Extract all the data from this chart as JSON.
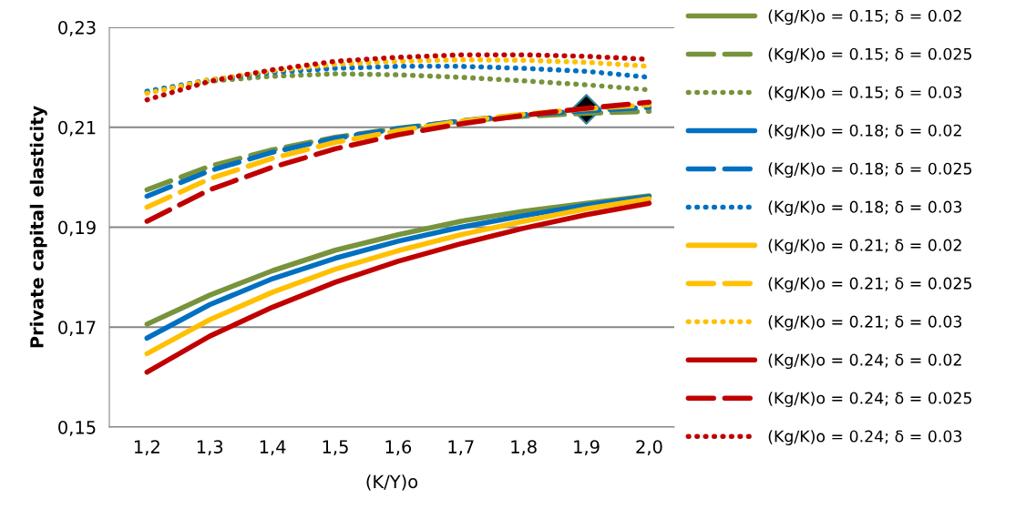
{
  "chart_data": {
    "type": "line",
    "xlabel": "(K/Y)o",
    "ylabel": "Private capital elasticity",
    "categories": [
      "1,2",
      "1,3",
      "1,4",
      "1,5",
      "1,6",
      "1,7",
      "1,8",
      "1,9",
      "2,0"
    ],
    "ylim": [
      0.15,
      0.23
    ],
    "yticks": [
      {
        "value": 0.15,
        "label": "0,15"
      },
      {
        "value": 0.17,
        "label": "0,17"
      },
      {
        "value": 0.19,
        "label": "0,19"
      },
      {
        "value": 0.21,
        "label": "0,21"
      },
      {
        "value": 0.23,
        "label": "0,23"
      }
    ],
    "grid": "y",
    "legend": "right",
    "marker": "none",
    "series": [
      {
        "name": "(Kg/K)o = 0.15; δ = 0.02",
        "color": "#77933c",
        "line_style": "solid",
        "values": [
          0.1706,
          0.1764,
          0.1813,
          0.1854,
          0.1885,
          0.1912,
          0.1932,
          0.1948,
          0.1963
        ]
      },
      {
        "name": "(Kg/K)o = 0.15; δ = 0.025",
        "color": "#77933c",
        "line_style": "dashed",
        "values": [
          0.1975,
          0.2022,
          0.2055,
          0.208,
          0.2098,
          0.2112,
          0.2122,
          0.2128,
          0.2132
        ]
      },
      {
        "name": "(Kg/K)o = 0.15; δ = 0.03",
        "color": "#77933c",
        "line_style": "dotted",
        "values": [
          0.217,
          0.2192,
          0.2202,
          0.2207,
          0.2205,
          0.22,
          0.2193,
          0.2185,
          0.2175
        ]
      },
      {
        "name": "(Kg/K)o = 0.18; δ = 0.02",
        "color": "#0070c0",
        "line_style": "solid",
        "values": [
          0.1678,
          0.1745,
          0.1797,
          0.1838,
          0.1872,
          0.19,
          0.1923,
          0.1944,
          0.1961
        ]
      },
      {
        "name": "(Kg/K)o = 0.18; δ = 0.025",
        "color": "#0070c0",
        "line_style": "dashed",
        "values": [
          0.1962,
          0.2013,
          0.205,
          0.2078,
          0.2097,
          0.2113,
          0.2125,
          0.2133,
          0.214
        ]
      },
      {
        "name": "(Kg/K)o = 0.18; δ = 0.03",
        "color": "#0070c0",
        "line_style": "dotted",
        "values": [
          0.2172,
          0.2195,
          0.221,
          0.2218,
          0.2222,
          0.2222,
          0.2218,
          0.2212,
          0.22
        ]
      },
      {
        "name": "(Kg/K)o = 0.21; δ = 0.02",
        "color": "#ffc000",
        "line_style": "solid",
        "values": [
          0.1647,
          0.1715,
          0.177,
          0.1816,
          0.1853,
          0.1885,
          0.1912,
          0.1937,
          0.1957
        ]
      },
      {
        "name": "(Kg/K)o = 0.21; δ = 0.025",
        "color": "#ffc000",
        "line_style": "dashed",
        "values": [
          0.194,
          0.1997,
          0.2038,
          0.207,
          0.2093,
          0.2112,
          0.2126,
          0.2137,
          0.2145
        ]
      },
      {
        "name": "(Kg/K)o = 0.21; δ = 0.03",
        "color": "#ffc000",
        "line_style": "dotted",
        "values": [
          0.2168,
          0.2195,
          0.2213,
          0.2226,
          0.2232,
          0.2235,
          0.2234,
          0.223,
          0.2222
        ]
      },
      {
        "name": "(Kg/K)o = 0.24; δ = 0.02",
        "color": "#c00000",
        "line_style": "solid",
        "values": [
          0.161,
          0.1682,
          0.174,
          0.179,
          0.1832,
          0.1867,
          0.1898,
          0.1925,
          0.1948
        ]
      },
      {
        "name": "(Kg/K)o = 0.24; δ = 0.025",
        "color": "#c00000",
        "line_style": "dashed",
        "values": [
          0.1912,
          0.1975,
          0.202,
          0.2057,
          0.2085,
          0.2107,
          0.2124,
          0.2138,
          0.215
        ]
      },
      {
        "name": "(Kg/K)o = 0.24; δ = 0.03",
        "color": "#c00000",
        "line_style": "dotted",
        "values": [
          0.2155,
          0.2192,
          0.2215,
          0.2232,
          0.224,
          0.2245,
          0.2245,
          0.2242,
          0.2236
        ]
      },
      {
        "type": "scatter",
        "color": "#000000",
        "marker": "diamond",
        "x": [
          "1,9"
        ],
        "values": [
          0.2136
        ]
      }
    ]
  }
}
